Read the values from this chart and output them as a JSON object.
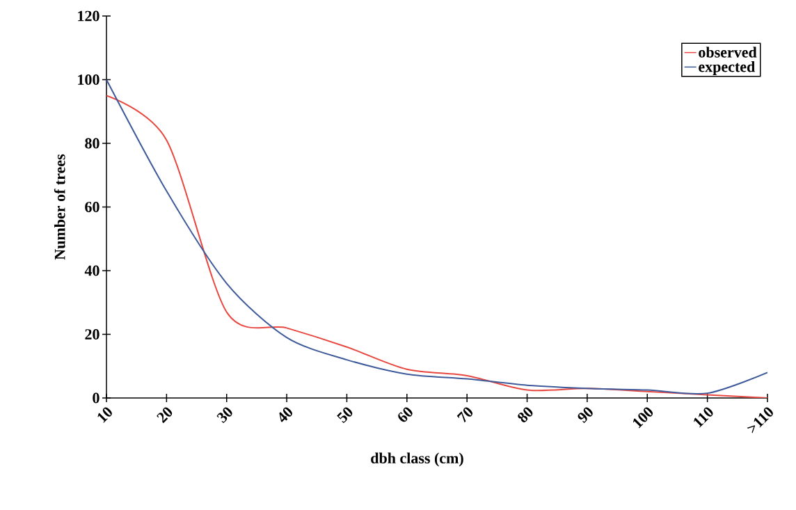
{
  "chart_data": {
    "type": "line",
    "xlabel": "dbh class (cm)",
    "ylabel": "Number of trees",
    "categories": [
      "10",
      "20",
      "30",
      "40",
      "50",
      "60",
      "70",
      "80",
      "90",
      "100",
      "110",
      ">110"
    ],
    "series": [
      {
        "name": "observed",
        "color": "#e8473f",
        "values": [
          95,
          81,
          27,
          22,
          16,
          9,
          7,
          2.5,
          3,
          2,
          1,
          0
        ]
      },
      {
        "name": "expected",
        "color": "#3f5a9a",
        "values": [
          100,
          65,
          36,
          19,
          12,
          7.5,
          6,
          4,
          3,
          2.5,
          1.5,
          8
        ]
      }
    ],
    "ylim": [
      0,
      120
    ],
    "yticks": [
      0,
      20,
      40,
      60,
      80,
      100,
      120
    ],
    "legend": "top right",
    "grid": false,
    "marker": "none",
    "line_style": "solid"
  }
}
